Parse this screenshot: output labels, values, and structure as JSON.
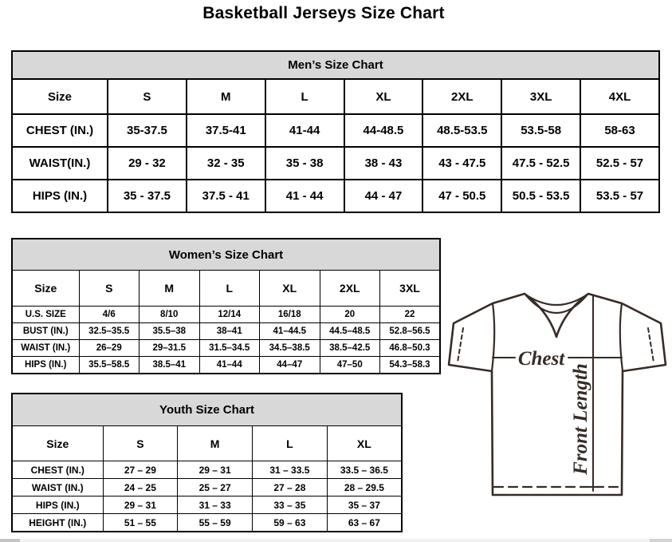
{
  "page": {
    "title": "Basketball Jerseys Size Chart"
  },
  "colors": {
    "table_header_bg": "#d8d8d8",
    "table_border": "#000000",
    "diagram_stroke": "#362b26",
    "background": "#ffffff"
  },
  "tables": [
    {
      "id": "mens",
      "title": "Men’s Size Chart",
      "columns": [
        "Size",
        "S",
        "M",
        "L",
        "XL",
        "2XL",
        "3XL",
        "4XL"
      ],
      "rows": [
        {
          "label": "CHEST (IN.)",
          "values": [
            "35-37.5",
            "37.5-41",
            "41-44",
            "44-48.5",
            "48.5-53.5",
            "53.5-58",
            "58-63"
          ]
        },
        {
          "label": "WAIST(IN.)",
          "values": [
            "29 - 32",
            "32 - 35",
            "35 - 38",
            "38 - 43",
            "43 - 47.5",
            "47.5 - 52.5",
            "52.5 - 57"
          ]
        },
        {
          "label": "HIPS (IN.)",
          "values": [
            "35 - 37.5",
            "37.5 - 41",
            "41 - 44",
            "44 - 47",
            "47 - 50.5",
            "50.5 - 53.5",
            "53.5 - 57"
          ]
        }
      ]
    },
    {
      "id": "womens",
      "title": "Women’s Size Chart",
      "columns": [
        "Size",
        "S",
        "M",
        "L",
        "XL",
        "2XL",
        "3XL"
      ],
      "rows": [
        {
          "label": "U.S. SIZE",
          "values": [
            "4/6",
            "8/10",
            "12/14",
            "16/18",
            "20",
            "22"
          ]
        },
        {
          "label": "BUST (IN.)",
          "values": [
            "32.5–35.5",
            "35.5–38",
            "38–41",
            "41–44.5",
            "44.5–48.5",
            "52.8–56.5"
          ]
        },
        {
          "label": "WAIST (IN.)",
          "values": [
            "26–29",
            "29–31.5",
            "31.5–34.5",
            "34.5–38.5",
            "38.5–42.5",
            "46.8–50.3"
          ]
        },
        {
          "label": "HIPS (IN.)",
          "values": [
            "35.5–58.5",
            "38.5–41",
            "41–44",
            "44–47",
            "47–50",
            "54.3–58.3"
          ]
        }
      ]
    },
    {
      "id": "youth",
      "title": "Youth Size Chart",
      "columns": [
        "Size",
        "S",
        "M",
        "L",
        "XL"
      ],
      "rows": [
        {
          "label": "CHEST (IN.)",
          "values": [
            "27 – 29",
            "29 – 31",
            "31 – 33.5",
            "33.5 – 36.5"
          ]
        },
        {
          "label": "WAIST (IN.)",
          "values": [
            "24 – 25",
            "25 – 27",
            "27 – 28",
            "28 – 29.5"
          ]
        },
        {
          "label": "HIPS (IN.)",
          "values": [
            "29 – 31",
            "31 – 33",
            "33 – 35",
            "35 – 37"
          ]
        },
        {
          "label": "HEIGHT (IN.)",
          "values": [
            "51 – 55",
            "55 – 59",
            "59 – 63",
            "63 – 67"
          ]
        }
      ]
    }
  ],
  "diagram": {
    "chest_label": "Chest",
    "front_length_label": "Front Length"
  }
}
